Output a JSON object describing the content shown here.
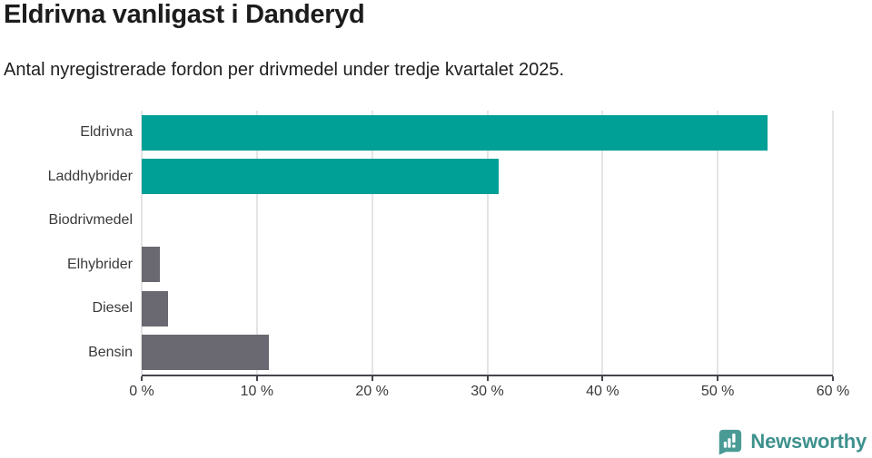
{
  "header": {
    "title": "Eldrivna vanligast i Danderyd",
    "subtitle": "Antal nyregistrerade fordon per drivmedel under tredje kvartalet 2025."
  },
  "chart_data": {
    "type": "bar",
    "orientation": "horizontal",
    "title": "Eldrivna vanligast i Danderyd",
    "subtitle": "Antal nyregistrerade fordon per drivmedel under tredje kvartalet 2025.",
    "categories": [
      "Eldrivna",
      "Laddhybrider",
      "Biodrivmedel",
      "Elhybrider",
      "Diesel",
      "Bensin"
    ],
    "values": [
      54.3,
      31.0,
      0,
      1.6,
      2.3,
      11.0
    ],
    "unit": "%",
    "xlabel": "",
    "ylabel": "",
    "xlim": [
      0,
      60
    ],
    "xticks": [
      0,
      10,
      20,
      30,
      40,
      50,
      60
    ],
    "xtick_labels": [
      "0 %",
      "10 %",
      "20 %",
      "30 %",
      "40 %",
      "50 %",
      "60 %"
    ],
    "bar_colors": [
      "#00A096",
      "#00A096",
      "#00A096",
      "#6A6870",
      "#6A6870",
      "#6A6870"
    ],
    "grid": true,
    "legend": null
  },
  "colors": {
    "highlight": "#00A096",
    "default_bar": "#6A6870",
    "gridline": "#e4e4e6",
    "axis": "#45454d",
    "logo_icon": "#4a9b95",
    "logo_text": "#3e918d"
  },
  "footer": {
    "brand": "Newsworthy"
  }
}
